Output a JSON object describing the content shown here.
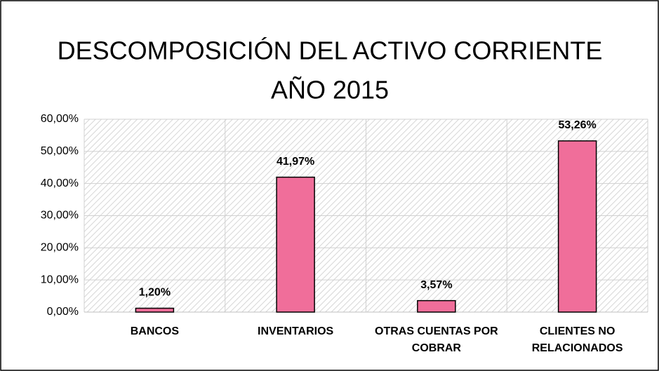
{
  "chart_data": {
    "type": "bar",
    "title": [
      "DESCOMPOSICIÓN DEL ACTIVO CORRIENTE",
      "AÑO 2015"
    ],
    "categories": [
      "BANCOS",
      "INVENTARIOS",
      "OTRAS CUENTAS POR COBRAR",
      "CLIENTES NO RELACIONADOS"
    ],
    "values": [
      1.2,
      41.97,
      3.57,
      53.26
    ],
    "value_labels": [
      "1,20%",
      "41,97%",
      "3,57%",
      "53,26%"
    ],
    "color": "#f06e9a",
    "ylim": [
      0,
      60
    ],
    "yticks": [
      {
        "value": 0,
        "label": "0,00%"
      },
      {
        "value": 10,
        "label": "10,00%"
      },
      {
        "value": 20,
        "label": "20,00%"
      },
      {
        "value": 30,
        "label": "30,00%"
      },
      {
        "value": 40,
        "label": "40,00%"
      },
      {
        "value": 50,
        "label": "50,00%"
      },
      {
        "value": 60,
        "label": "60,00%"
      }
    ],
    "grid": true
  }
}
